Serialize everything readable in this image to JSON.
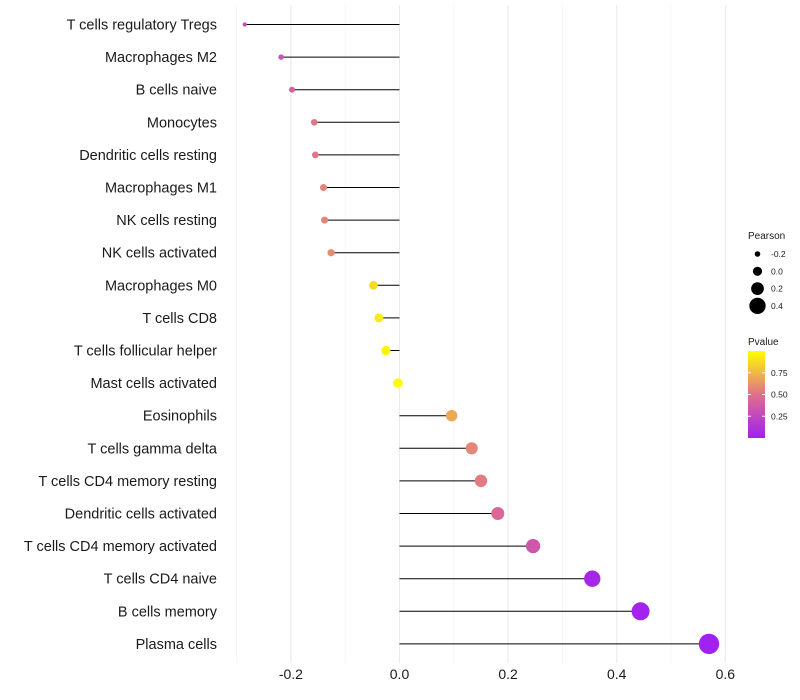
{
  "chart_data": {
    "type": "lollipop",
    "title": "",
    "xlabel": "",
    "ylabel": "",
    "xlim": [
      -0.3,
      0.6
    ],
    "x_ticks": [
      "-0.2",
      "0.0",
      "0.2",
      "0.4",
      "0.6"
    ],
    "x_tick_values": [
      -0.2,
      0.0,
      0.2,
      0.4,
      0.6
    ],
    "baseline": 0,
    "categories": [
      "T cells regulatory  Tregs",
      "Macrophages M2",
      "B cells naive",
      "Monocytes",
      "Dendritic cells resting",
      "Macrophages M1",
      "NK cells resting",
      "NK cells activated",
      "Macrophages M0",
      "T cells CD8",
      "T cells follicular helper",
      "Mast cells activated",
      "Eosinophils",
      "T cells gamma delta",
      "T cells CD4 memory resting",
      "Dendritic cells activated",
      "T cells CD4 memory activated",
      "T cells CD4 naive",
      "B cells memory",
      "Plasma cells"
    ],
    "pearson": [
      -0.285,
      -0.218,
      -0.198,
      -0.157,
      -0.155,
      -0.14,
      -0.138,
      -0.126,
      -0.048,
      -0.038,
      -0.025,
      -0.003,
      0.096,
      0.133,
      0.15,
      0.181,
      0.246,
      0.355,
      0.444,
      0.57
    ],
    "pvalue": [
      0.28,
      0.33,
      0.4,
      0.52,
      0.52,
      0.57,
      0.57,
      0.6,
      0.87,
      0.93,
      0.95,
      0.99,
      0.7,
      0.58,
      0.54,
      0.45,
      0.35,
      0.05,
      0.02,
      0.01
    ],
    "legend_size": {
      "title": "Pearson",
      "labels": [
        "-0.2",
        "0.0",
        "0.2",
        "0.4"
      ],
      "values": [
        -0.2,
        0.0,
        0.2,
        0.4
      ]
    },
    "legend_color": {
      "title": "Pvalue",
      "labels": [
        "0.25",
        "0.50",
        "0.75"
      ],
      "values": [
        0.25,
        0.5,
        0.75
      ],
      "range": [
        0.0,
        1.0
      ],
      "colors": [
        "#a020f0",
        "#e0708c",
        "#ffff00"
      ]
    },
    "stem_color": "#000000"
  }
}
